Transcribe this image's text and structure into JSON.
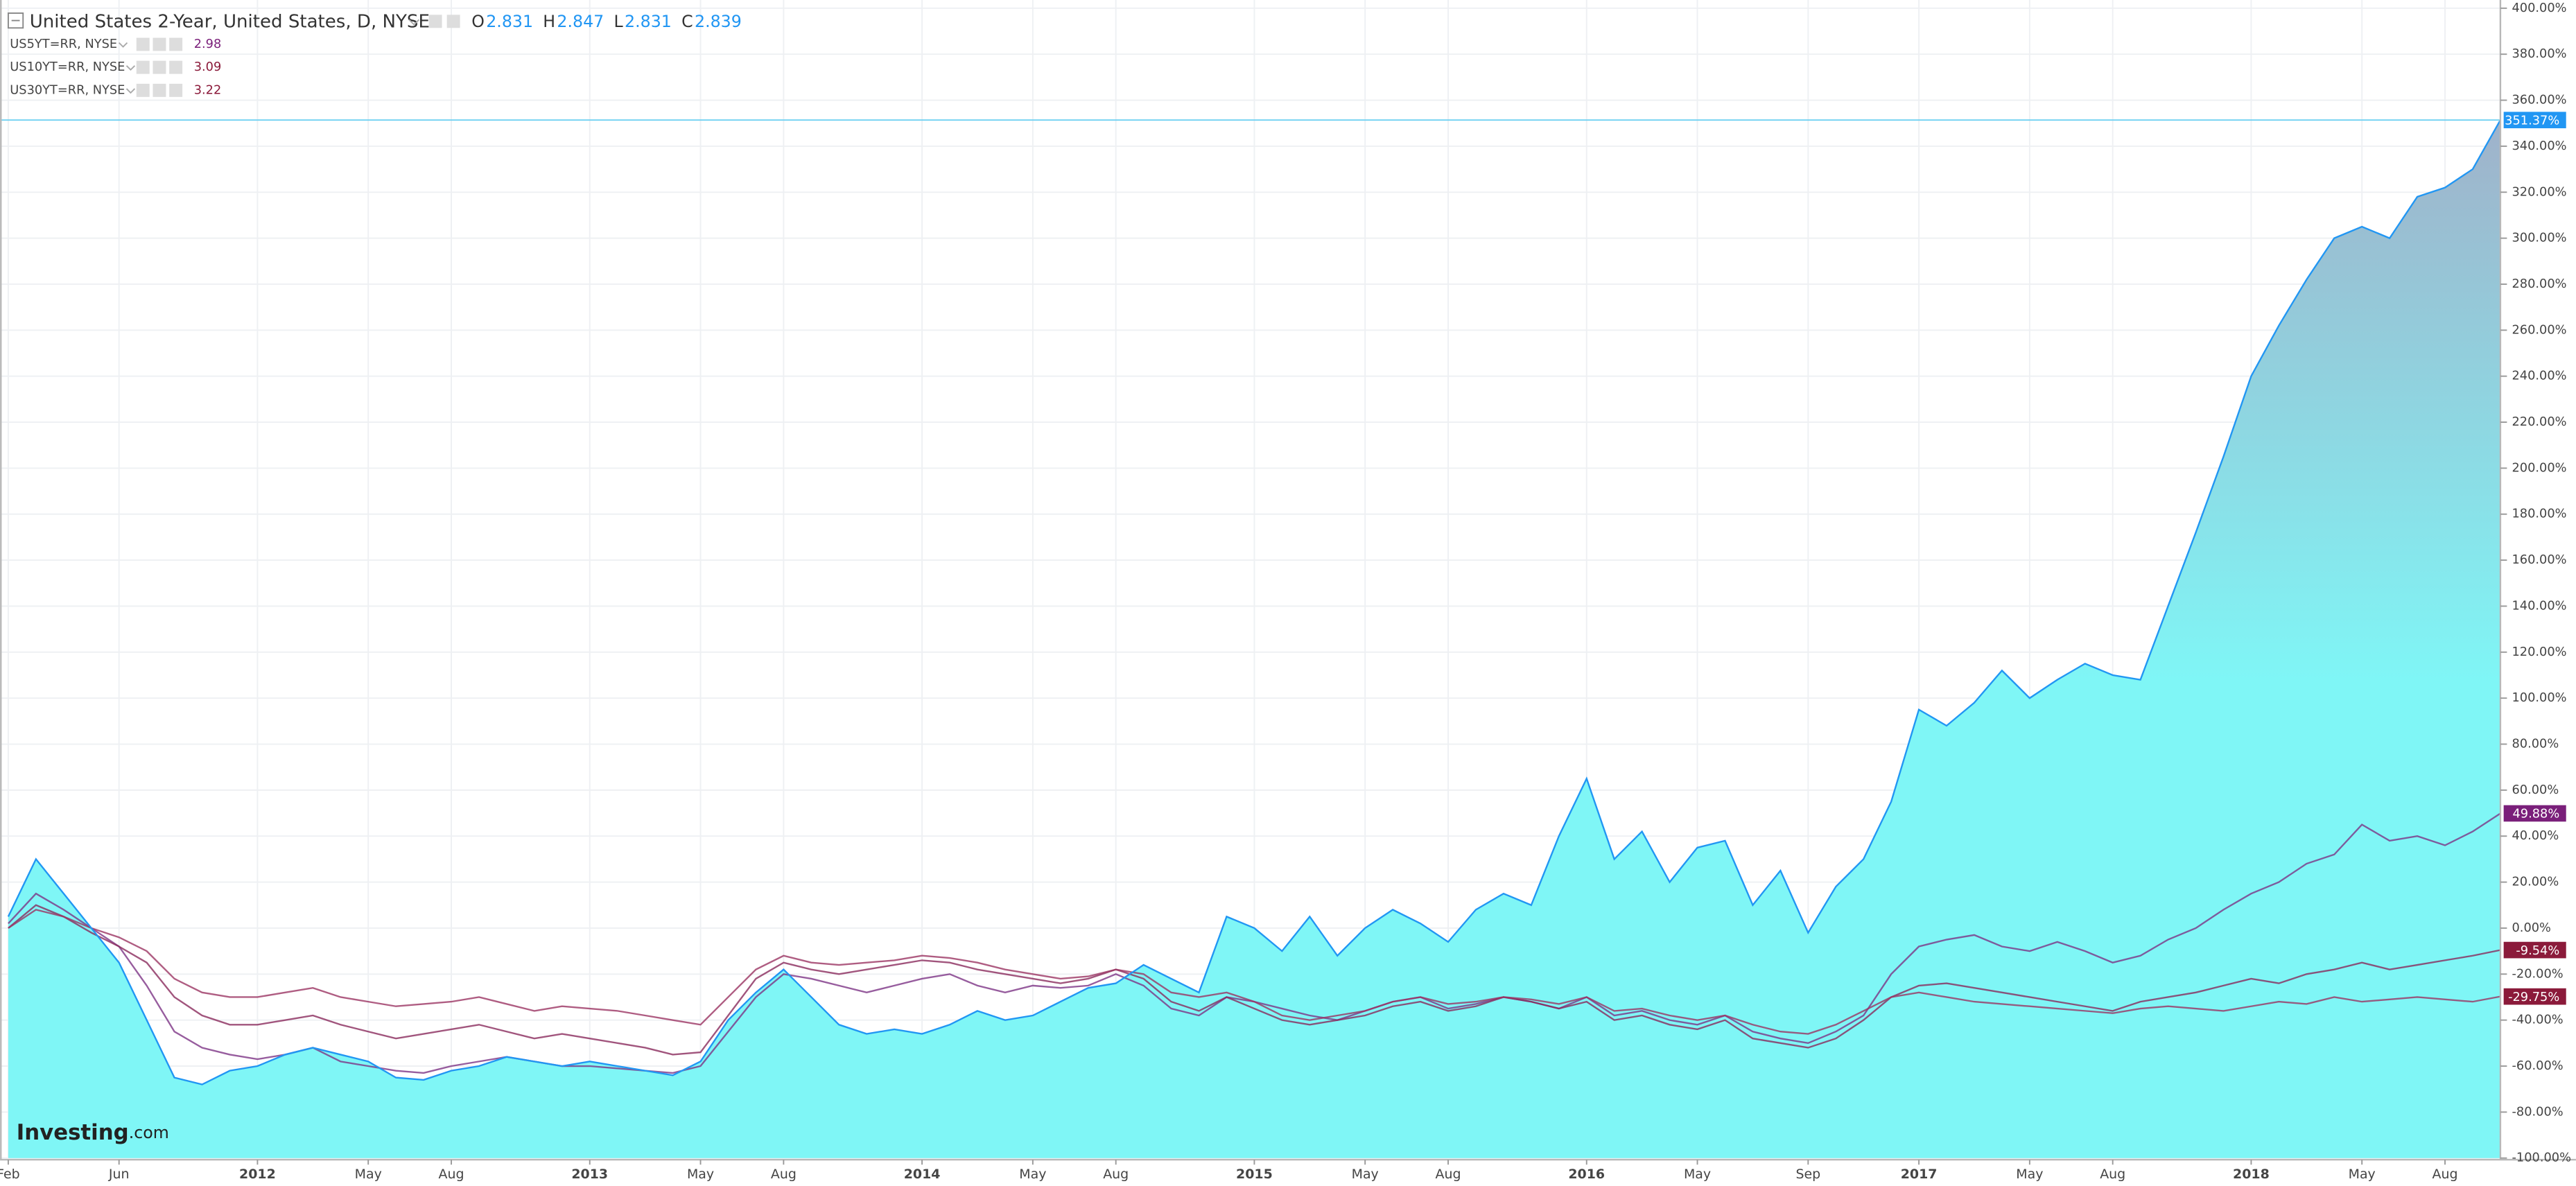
{
  "chart_data": {
    "type": "area-compare",
    "ohlc": [
      {
        "key": "O",
        "value": 2.831
      },
      {
        "key": "H",
        "value": 2.847
      },
      {
        "key": "L",
        "value": 2.831
      },
      {
        "key": "C",
        "value": 2.839
      }
    ],
    "watermark": [
      "Investing",
      ".com"
    ],
    "categories": [
      "Feb",
      null,
      null,
      null,
      "Jun",
      null,
      null,
      null,
      null,
      "2012",
      null,
      null,
      null,
      "May",
      null,
      null,
      "Aug",
      null,
      null,
      null,
      null,
      "2013",
      null,
      null,
      null,
      "May",
      null,
      null,
      "Aug",
      null,
      null,
      null,
      null,
      "2014",
      null,
      null,
      null,
      "May",
      null,
      null,
      "Aug",
      null,
      null,
      null,
      null,
      "2015",
      null,
      null,
      null,
      "May",
      null,
      null,
      "Aug",
      null,
      null,
      null,
      null,
      "2016",
      null,
      null,
      null,
      "May",
      null,
      null,
      null,
      "Sep",
      null,
      null,
      null,
      "2017",
      null,
      null,
      null,
      "May",
      null,
      null,
      "Aug",
      null,
      null,
      null,
      null,
      "2018",
      null,
      null,
      null,
      "May",
      null,
      null,
      "Aug",
      null,
      null
    ],
    "ylim": [
      -100,
      400
    ],
    "yticks": [
      {
        "value": -100,
        "label": "-100.00%"
      },
      {
        "value": -80,
        "label": "-80.00%"
      },
      {
        "value": -60,
        "label": "-60.00%"
      },
      {
        "value": -40,
        "label": "-40.00%"
      },
      {
        "value": -20,
        "label": "-20.00%"
      },
      {
        "value": 0,
        "label": "0.00%"
      },
      {
        "value": 20,
        "label": "20.00%"
      },
      {
        "value": 40,
        "label": "40.00%"
      },
      {
        "value": 60,
        "label": "60.00%"
      },
      {
        "value": 80,
        "label": "80.00%"
      },
      {
        "value": 100,
        "label": "100.00%"
      },
      {
        "value": 120,
        "label": "120.00%"
      },
      {
        "value": 140,
        "label": "140.00%"
      },
      {
        "value": 160,
        "label": "160.00%"
      },
      {
        "value": 180,
        "label": "180.00%"
      },
      {
        "value": 200,
        "label": "200.00%"
      },
      {
        "value": 220,
        "label": "220.00%"
      },
      {
        "value": 240,
        "label": "240.00%"
      },
      {
        "value": 260,
        "label": "260.00%"
      },
      {
        "value": 280,
        "label": "280.00%"
      },
      {
        "value": 300,
        "label": "300.00%"
      },
      {
        "value": 320,
        "label": "320.00%"
      },
      {
        "value": 340,
        "label": "340.00%"
      },
      {
        "value": 360,
        "label": "360.00%"
      },
      {
        "value": 380,
        "label": "380.00%"
      },
      {
        "value": 400,
        "label": "400.00%"
      }
    ],
    "grid": true,
    "series": [
      {
        "name": "United States 2-Year, United States, D, NYSE",
        "color": "#2196f3",
        "fill": [
          "#7ff6f6",
          "#a1afc8"
        ],
        "badge_color": "#2196f3",
        "last": {
          "value": 351.37,
          "label": "351.37%"
        },
        "values": [
          5,
          30,
          15,
          0,
          -15,
          -40,
          -65,
          -68,
          -62,
          -60,
          -55,
          -52,
          -55,
          -58,
          -65,
          -66,
          -62,
          -60,
          -56,
          -58,
          -60,
          -58,
          -60,
          -62,
          -64,
          -58,
          -40,
          -28,
          -18,
          -30,
          -42,
          -46,
          -44,
          -46,
          -42,
          -36,
          -40,
          -38,
          -32,
          -26,
          -24,
          -16,
          -22,
          -28,
          5,
          0,
          -10,
          5,
          -12,
          0,
          8,
          2,
          -6,
          8,
          15,
          10,
          40,
          65,
          30,
          42,
          20,
          35,
          38,
          10,
          25,
          -2,
          18,
          30,
          55,
          95,
          88,
          98,
          112,
          100,
          108,
          115,
          110,
          108,
          140,
          172,
          205,
          240,
          262,
          282,
          300,
          305,
          300,
          318,
          322,
          330,
          351.37
        ]
      },
      {
        "name": "US5YT=RR, NYSE",
        "price": 2.98,
        "color": "#7d3486",
        "badge_color": "#7a1f7a",
        "last": {
          "value": 49.88,
          "label": "49.88%"
        },
        "values": [
          2,
          15,
          8,
          0,
          -8,
          -25,
          -45,
          -52,
          -55,
          -57,
          -55,
          -52,
          -58,
          -60,
          -62,
          -63,
          -60,
          -58,
          -56,
          -58,
          -60,
          -60,
          -61,
          -62,
          -63,
          -60,
          -45,
          -30,
          -20,
          -22,
          -25,
          -28,
          -25,
          -22,
          -20,
          -25,
          -28,
          -25,
          -26,
          -25,
          -20,
          -25,
          -35,
          -38,
          -30,
          -32,
          -35,
          -38,
          -40,
          -36,
          -32,
          -30,
          -35,
          -33,
          -30,
          -32,
          -35,
          -30,
          -38,
          -36,
          -40,
          -42,
          -38,
          -45,
          -48,
          -50,
          -45,
          -38,
          -20,
          -8,
          -5,
          -3,
          -8,
          -10,
          -6,
          -10,
          -15,
          -12,
          -5,
          0,
          8,
          15,
          20,
          28,
          32,
          45,
          38,
          40,
          36,
          42,
          49.88
        ]
      },
      {
        "name": "US10YT=RR, NYSE",
        "price": 3.09,
        "color": "#8a2a5c",
        "badge_color": "#8b1a3a",
        "last": {
          "value": -9.54,
          "label": "-9.54%"
        },
        "values": [
          0,
          10,
          5,
          -2,
          -8,
          -15,
          -30,
          -38,
          -42,
          -42,
          -40,
          -38,
          -42,
          -45,
          -48,
          -46,
          -44,
          -42,
          -45,
          -48,
          -46,
          -48,
          -50,
          -52,
          -55,
          -54,
          -38,
          -22,
          -15,
          -18,
          -20,
          -18,
          -16,
          -14,
          -15,
          -18,
          -20,
          -22,
          -24,
          -22,
          -18,
          -22,
          -32,
          -36,
          -30,
          -35,
          -40,
          -42,
          -40,
          -38,
          -34,
          -32,
          -36,
          -34,
          -30,
          -32,
          -35,
          -32,
          -40,
          -38,
          -42,
          -44,
          -40,
          -48,
          -50,
          -52,
          -48,
          -40,
          -30,
          -25,
          -24,
          -26,
          -28,
          -30,
          -32,
          -34,
          -36,
          -32,
          -30,
          -28,
          -25,
          -22,
          -24,
          -20,
          -18,
          -15,
          -18,
          -16,
          -14,
          -12,
          -9.54
        ]
      },
      {
        "name": "US30YT=RR, NYSE",
        "price": 3.22,
        "color": "#9b3463",
        "badge_color": "#8b1a3a",
        "last": {
          "value": -29.75,
          "label": "-29.75%"
        },
        "values": [
          0,
          8,
          5,
          0,
          -4,
          -10,
          -22,
          -28,
          -30,
          -30,
          -28,
          -26,
          -30,
          -32,
          -34,
          -33,
          -32,
          -30,
          -33,
          -36,
          -34,
          -35,
          -36,
          -38,
          -40,
          -42,
          -30,
          -18,
          -12,
          -15,
          -16,
          -15,
          -14,
          -12,
          -13,
          -15,
          -18,
          -20,
          -22,
          -21,
          -18,
          -20,
          -28,
          -30,
          -28,
          -32,
          -38,
          -40,
          -38,
          -36,
          -32,
          -30,
          -33,
          -32,
          -30,
          -31,
          -33,
          -30,
          -36,
          -35,
          -38,
          -40,
          -38,
          -42,
          -45,
          -46,
          -42,
          -36,
          -30,
          -28,
          -30,
          -32,
          -33,
          -34,
          -35,
          -36,
          -37,
          -35,
          -34,
          -35,
          -36,
          -34,
          -32,
          -33,
          -30,
          -32,
          -31,
          -30,
          -31,
          -32,
          -29.75
        ]
      }
    ]
  }
}
